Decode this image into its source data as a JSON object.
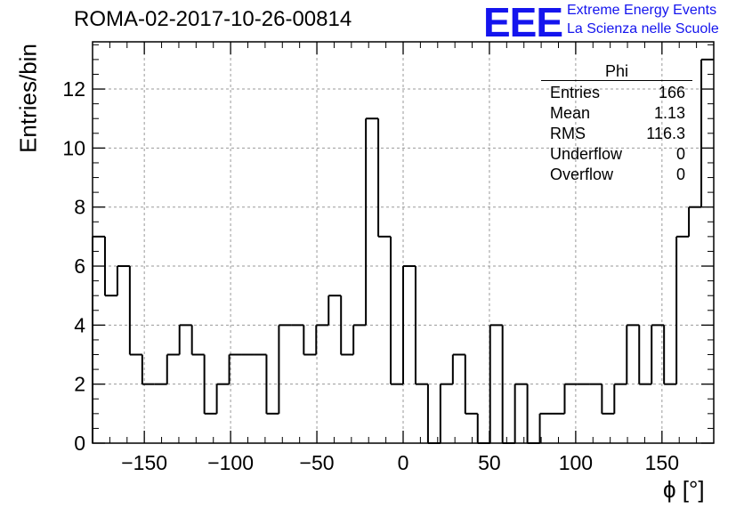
{
  "title": "ROMA-02-2017-10-26-00814",
  "logo": {
    "mark": "EEE",
    "line1": "Extreme Energy Events",
    "line2": "La Scienza nelle Scuole",
    "color": "#1414ee"
  },
  "stats": {
    "title": "Phi",
    "rows": [
      {
        "label": "Entries",
        "value": "166"
      },
      {
        "label": "Mean",
        "value": "1.13"
      },
      {
        "label": "RMS",
        "value": "116.3"
      },
      {
        "label": "Underflow",
        "value": "0"
      },
      {
        "label": "Overflow",
        "value": "0"
      }
    ]
  },
  "chart_data": {
    "type": "bar",
    "title": "ROMA-02-2017-10-26-00814",
    "xlabel": "ϕ [°]",
    "ylabel": "Entries/bin",
    "xlim": [
      -180,
      180
    ],
    "ylim": [
      0,
      13.6
    ],
    "bin_width": 7.2,
    "bin_edges_start": -180,
    "values": [
      7,
      5,
      6,
      3,
      2,
      2,
      3,
      4,
      3,
      1,
      2,
      3,
      3,
      3,
      1,
      4,
      4,
      3,
      4,
      5,
      3,
      4,
      11,
      7,
      2,
      6,
      2,
      0,
      2,
      3,
      1,
      0,
      4,
      0,
      2,
      0,
      1,
      1,
      2,
      2,
      2,
      1,
      2,
      4,
      2,
      4,
      2,
      7,
      8,
      13
    ],
    "xticks": [
      -150,
      -100,
      -50,
      0,
      50,
      100,
      150
    ],
    "xtick_labels": [
      "−150",
      "−100",
      "−50",
      "0",
      "50",
      "100",
      "150"
    ],
    "yticks": [
      0,
      2,
      4,
      6,
      8,
      10,
      12
    ],
    "ytick_labels": [
      "0",
      "2",
      "4",
      "6",
      "8",
      "10",
      "12"
    ],
    "grid": true,
    "histogram_style": "step",
    "line_color": "#000000"
  }
}
